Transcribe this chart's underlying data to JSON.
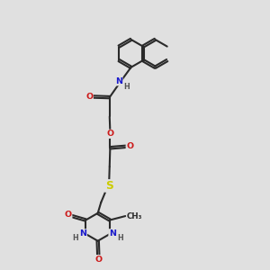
{
  "bg_color": "#e0e0e0",
  "bond_color": "#2a2a2a",
  "bond_width": 1.5,
  "double_sep": 0.08,
  "ring_r": 0.52,
  "atom_colors": {
    "N": "#1a1acc",
    "O": "#cc1a1a",
    "S": "#cccc00",
    "H": "#555555"
  },
  "font_size": 6.8
}
